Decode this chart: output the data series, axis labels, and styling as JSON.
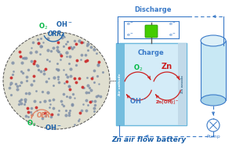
{
  "bg_color": "#ffffff",
  "title": "Zn air flow battery",
  "title_color": "#1a5fa8",
  "title_fontsize": 6.5,
  "discharge_label": "Discharge",
  "charge_label": "Charge",
  "circuit_color": "#3a7ac8",
  "o2_color": "#00b844",
  "oh_color": "#1a5fa8",
  "orr_color": "#1a5fa8",
  "oer_color": "#e08060",
  "zn_color": "#cc2020",
  "o2_circ_color": "#00b844",
  "oh_circ_color": "#3a7ac8",
  "air_cathode_color": "#6ab8dc",
  "zn_anode_color": "#c0d8e8",
  "battery_fill": "#d4ecf8",
  "battery_border": "#6ab8dc",
  "green_block": "#44cc00",
  "ellipse_dots_blue": "#8090a8",
  "ellipse_dots_red": "#cc3030",
  "ellipse_bg": "#e0dfd0",
  "ellipse_border": "#505050",
  "pump_label": "Pump",
  "cyl_fill": "#c8e8f4",
  "cyl_border": "#3a7ac8"
}
